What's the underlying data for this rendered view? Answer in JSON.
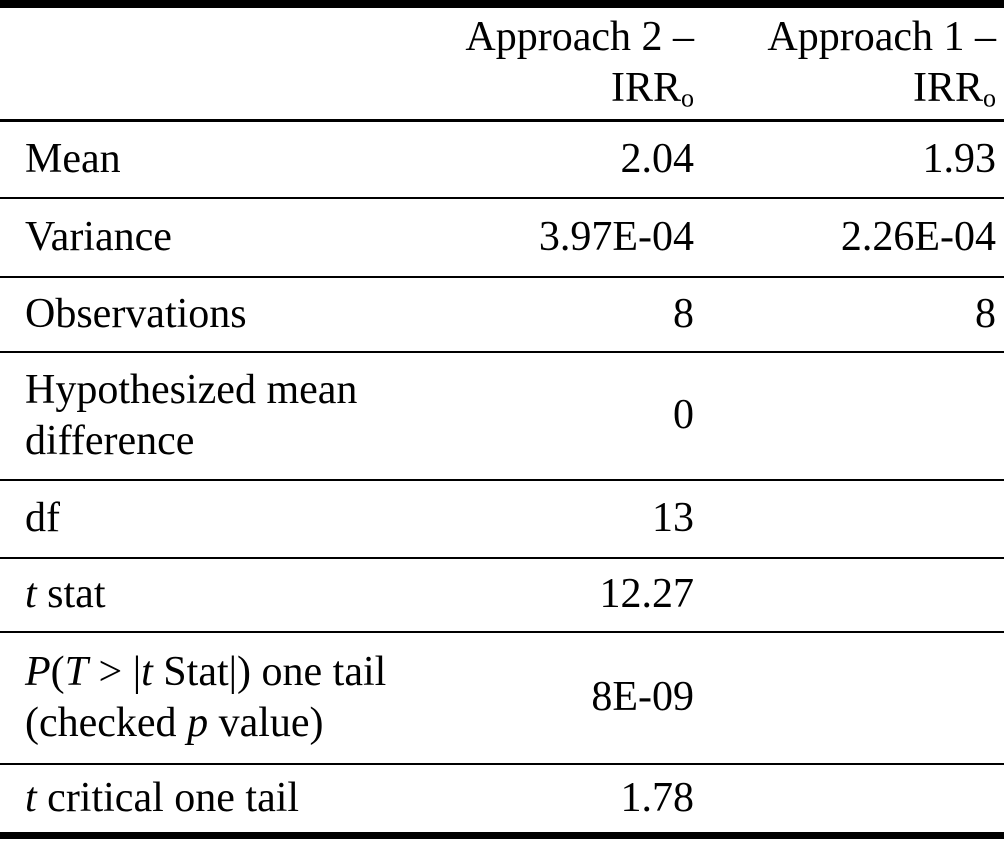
{
  "colors": {
    "text": "#000000",
    "background": "#ffffff",
    "rule": "#000000"
  },
  "table": {
    "description": "t-test results comparing two approaches",
    "header": {
      "label_column": "",
      "columns": [
        {
          "line1": "Approach 2 –",
          "base": "IRR",
          "subscript": "o"
        },
        {
          "line1": "Approach 1 –",
          "base": "IRR",
          "subscript": "o"
        }
      ]
    },
    "rows": [
      {
        "label_segments": [
          {
            "text": "Mean",
            "italic": false
          }
        ],
        "values": [
          "2.04",
          "1.93"
        ]
      },
      {
        "label_segments": [
          {
            "text": "Variance",
            "italic": false
          }
        ],
        "values": [
          "3.97E-04",
          "2.26E-04"
        ]
      },
      {
        "label_segments": [
          {
            "text": "Observations",
            "italic": false
          }
        ],
        "values": [
          "8",
          "8"
        ]
      },
      {
        "label_segments": [
          {
            "text": "Hypothesized mean difference",
            "italic": false
          }
        ],
        "values": [
          "0",
          ""
        ]
      },
      {
        "label_segments": [
          {
            "text": "df",
            "italic": false
          }
        ],
        "values": [
          "13",
          ""
        ]
      },
      {
        "label_segments": [
          {
            "text": "t",
            "italic": true
          },
          {
            "text": " stat",
            "italic": false
          }
        ],
        "values": [
          "12.27",
          ""
        ]
      },
      {
        "label_segments": [
          {
            "text": "P",
            "italic": true
          },
          {
            "text": "(",
            "italic": false
          },
          {
            "text": "T",
            "italic": true
          },
          {
            "text": " > |",
            "italic": false
          },
          {
            "text": "t",
            "italic": true
          },
          {
            "text": " Stat|) one tail (checked ",
            "italic": false
          },
          {
            "text": "p",
            "italic": true
          },
          {
            "text": " value)",
            "italic": false
          }
        ],
        "values": [
          "8E-09",
          ""
        ]
      },
      {
        "label_segments": [
          {
            "text": "t",
            "italic": true
          },
          {
            "text": " critical one tail",
            "italic": false
          }
        ],
        "values": [
          "1.78",
          ""
        ]
      }
    ]
  }
}
